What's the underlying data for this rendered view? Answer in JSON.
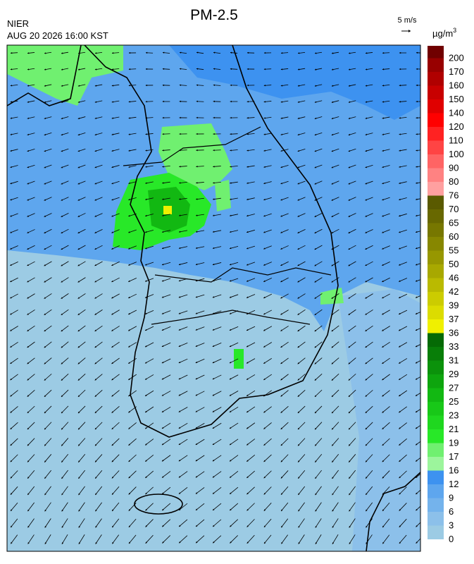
{
  "header": {
    "title": "PM-2.5",
    "agency": "NIER",
    "datetime": "AUG 20 2026 16:00 KST"
  },
  "wind_scale": {
    "label": "5 m/s"
  },
  "legend": {
    "unit": "µg/m",
    "unit_sup": "3",
    "levels": [
      {
        "value": 0,
        "color": "#9ccbe4"
      },
      {
        "value": 3,
        "color": "#8cc0ea"
      },
      {
        "value": 6,
        "color": "#74b3ec"
      },
      {
        "value": 9,
        "color": "#5ea6ee"
      },
      {
        "value": 12,
        "color": "#3d92f0"
      },
      {
        "value": 16,
        "color": "#9cf59c"
      },
      {
        "value": 17,
        "color": "#70f070"
      },
      {
        "value": 19,
        "color": "#28e828"
      },
      {
        "value": 21,
        "color": "#1fd71f"
      },
      {
        "value": 23,
        "color": "#18c818"
      },
      {
        "value": 25,
        "color": "#12b812"
      },
      {
        "value": 27,
        "color": "#0ea50e"
      },
      {
        "value": 29,
        "color": "#0b920b"
      },
      {
        "value": 31,
        "color": "#087e08"
      },
      {
        "value": 33,
        "color": "#056a05"
      },
      {
        "value": 36,
        "color": "#f0f000"
      },
      {
        "value": 37,
        "color": "#dcdc00"
      },
      {
        "value": 39,
        "color": "#cccc00"
      },
      {
        "value": 42,
        "color": "#baba00"
      },
      {
        "value": 46,
        "color": "#a8a800"
      },
      {
        "value": 50,
        "color": "#979700"
      },
      {
        "value": 55,
        "color": "#878700"
      },
      {
        "value": 60,
        "color": "#777700"
      },
      {
        "value": 65,
        "color": "#686800"
      },
      {
        "value": 70,
        "color": "#5a5a00"
      },
      {
        "value": 76,
        "color": "#ffa0a0"
      },
      {
        "value": 80,
        "color": "#ff8282"
      },
      {
        "value": 90,
        "color": "#ff6464"
      },
      {
        "value": 100,
        "color": "#ff4444"
      },
      {
        "value": 110,
        "color": "#ff2222"
      },
      {
        "value": 120,
        "color": "#ff0000"
      },
      {
        "value": 140,
        "color": "#e00000"
      },
      {
        "value": 150,
        "color": "#c80000"
      },
      {
        "value": 160,
        "color": "#b00000"
      },
      {
        "value": 170,
        "color": "#980000"
      },
      {
        "value": 200,
        "color": "#700000"
      }
    ]
  }
}
